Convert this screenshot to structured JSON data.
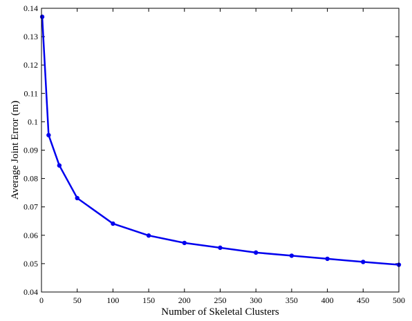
{
  "chart_data": {
    "type": "line",
    "title": "",
    "xlabel": "Number of Skeletal Clusters",
    "ylabel": "Average Joint Error (m)",
    "xlim": [
      0,
      500
    ],
    "ylim": [
      0.04,
      0.14
    ],
    "x_ticks": [
      "0",
      "50",
      "100",
      "150",
      "200",
      "250",
      "300",
      "350",
      "400",
      "450",
      "500"
    ],
    "y_ticks": [
      "0.04",
      "0.05",
      "0.06",
      "0.07",
      "0.08",
      "0.09",
      "0.1",
      "0.11",
      "0.12",
      "0.13",
      "0.14"
    ],
    "grid": false,
    "legend": "none",
    "series": [
      {
        "color": "#0000ee",
        "x": [
          1,
          10,
          25,
          50,
          100,
          150,
          200,
          250,
          300,
          350,
          400,
          450,
          500
        ],
        "y": [
          0.137,
          0.0953,
          0.0846,
          0.0731,
          0.0641,
          0.0599,
          0.0573,
          0.0556,
          0.0539,
          0.0528,
          0.0517,
          0.0506,
          0.0496
        ]
      }
    ]
  }
}
